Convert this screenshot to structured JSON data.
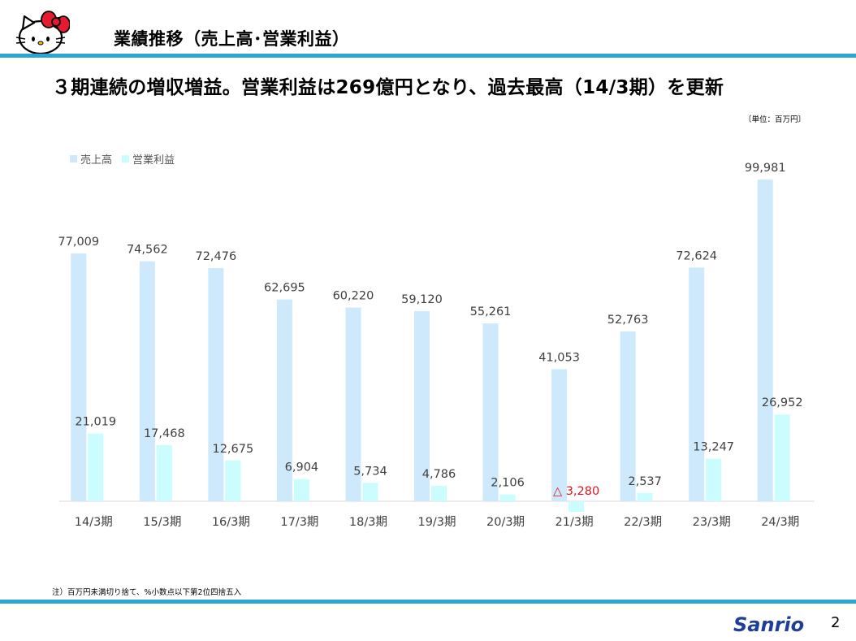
{
  "header": {
    "title": "業績推移（売上高･営業利益）"
  },
  "headline": "３期連続の増収増益。営業利益は269億円となり、過去最高（14/3期）を更新",
  "unit_note": "〔単位：百万円〕",
  "footnote": "注）百万円未満切り捨て、%小数点以下第2位四捨五入",
  "page_number": "2",
  "brand": {
    "logo_text": "Sanrio",
    "logo_icon": "hello-kitty-icon"
  },
  "colors": {
    "accent_bar": "#2ea3d5",
    "sales": "#cde9fb",
    "profit": "#ccfdfe",
    "negative_label": "#e0141e",
    "logo": "#1f3f97",
    "bow": "#e51a2e"
  },
  "chart_data": {
    "type": "bar",
    "categories": [
      "14/3期",
      "15/3期",
      "16/3期",
      "17/3期",
      "18/3期",
      "19/3期",
      "20/3期",
      "21/3期",
      "22/3期",
      "23/3期",
      "24/3期"
    ],
    "series": [
      {
        "name": "売上高",
        "values": [
          77009,
          74562,
          72476,
          62695,
          60220,
          59120,
          55261,
          41053,
          52763,
          72624,
          99981
        ],
        "labels": [
          "77,009",
          "74,562",
          "72,476",
          "62,695",
          "60,220",
          "59,120",
          "55,261",
          "41,053",
          "52,763",
          "72,624",
          "99,981"
        ]
      },
      {
        "name": "営業利益",
        "values": [
          21019,
          17468,
          12675,
          6904,
          5734,
          4786,
          2106,
          -3280,
          2537,
          13247,
          26952
        ],
        "labels": [
          "21,019",
          "17,468",
          "12,675",
          "6,904",
          "5,734",
          "4,786",
          "2,106",
          "△ 3,280",
          "2,537",
          "13,247",
          "26,952"
        ]
      }
    ],
    "ylim": [
      -3280,
      99981
    ],
    "legend_position": "top-left",
    "grid": false
  }
}
